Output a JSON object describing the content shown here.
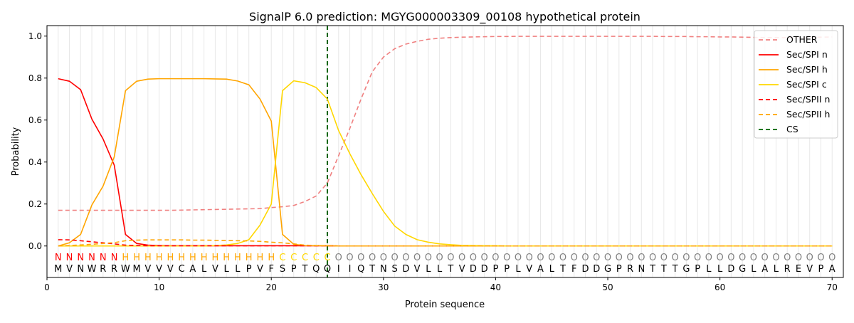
{
  "chart_data": {
    "type": "line",
    "title": "SignalP 6.0 prediction: MGYG000003309_00108 hypothetical protein",
    "xlabel": "Protein sequence",
    "ylabel": "Probability",
    "xlim": [
      0,
      71
    ],
    "ylim": [
      -0.15,
      1.05
    ],
    "x_ticks": [
      0,
      10,
      20,
      30,
      40,
      50,
      60,
      70
    ],
    "y_ticks": [
      0.0,
      0.2,
      0.4,
      0.6,
      0.8,
      1.0
    ],
    "x_tick_labels": [
      "0",
      "10",
      "20",
      "30",
      "40",
      "50",
      "60",
      "70"
    ],
    "y_tick_labels": [
      "0.0",
      "0.2",
      "0.4",
      "0.6",
      "0.8",
      "1.0"
    ],
    "grid": "vertical lines at each residue",
    "legend_position": "top-right",
    "sequence": [
      "M",
      "V",
      "N",
      "W",
      "R",
      "R",
      "W",
      "M",
      "V",
      "V",
      "V",
      "C",
      "A",
      "L",
      "V",
      "L",
      "L",
      "P",
      "V",
      "F",
      "S",
      "P",
      "T",
      "Q",
      "Q",
      "I",
      "I",
      "Q",
      "T",
      "N",
      "S",
      "D",
      "V",
      "L",
      "L",
      "T",
      "V",
      "D",
      "D",
      "P",
      "P",
      "L",
      "V",
      "A",
      "L",
      "T",
      "F",
      "D",
      "D",
      "G",
      "P",
      "R",
      "N",
      "T",
      "T",
      "T",
      "G",
      "P",
      "L",
      "L",
      "D",
      "G",
      "L",
      "A",
      "L",
      "R",
      "E",
      "V",
      "P",
      "A"
    ],
    "region_labels": [
      "N",
      "N",
      "N",
      "N",
      "N",
      "N",
      "H",
      "H",
      "H",
      "H",
      "H",
      "H",
      "H",
      "H",
      "H",
      "H",
      "H",
      "H",
      "H",
      "H",
      "C",
      "C",
      "C",
      "C",
      "C",
      "O",
      "O",
      "O",
      "O",
      "O",
      "O",
      "O",
      "O",
      "O",
      "O",
      "O",
      "O",
      "O",
      "O",
      "O",
      "O",
      "O",
      "O",
      "O",
      "O",
      "O",
      "O",
      "O",
      "O",
      "O",
      "O",
      "O",
      "O",
      "O",
      "O",
      "O",
      "O",
      "O",
      "O",
      "O",
      "O",
      "O",
      "O",
      "O",
      "O",
      "O",
      "O",
      "O",
      "O",
      "O"
    ],
    "region_colors": {
      "N": "#ff0000",
      "H": "#ffa500",
      "C": "#ffd700",
      "O": "#808080"
    },
    "cleavage_site": 25,
    "series": [
      {
        "name": "OTHER",
        "color": "#f08080",
        "dash": "dashed",
        "values": [
          0.17,
          0.17,
          0.17,
          0.17,
          0.17,
          0.17,
          0.17,
          0.17,
          0.17,
          0.17,
          0.17,
          0.171,
          0.172,
          0.173,
          0.174,
          0.175,
          0.176,
          0.177,
          0.178,
          0.183,
          0.187,
          0.193,
          0.212,
          0.238,
          0.3,
          0.43,
          0.56,
          0.7,
          0.83,
          0.9,
          0.94,
          0.962,
          0.975,
          0.985,
          0.99,
          0.993,
          0.995,
          0.996,
          0.997,
          0.998,
          0.998,
          0.999,
          0.999,
          0.999,
          0.999,
          0.999,
          0.999,
          0.999,
          0.999,
          0.999,
          0.999,
          0.999,
          0.999,
          0.999,
          0.998,
          0.998,
          0.998,
          0.997,
          0.997,
          0.996,
          0.996,
          0.995,
          0.994,
          0.993,
          0.993,
          0.993,
          0.993,
          0.993,
          0.995,
          0.996
        ]
      },
      {
        "name": "Sec/SPI n",
        "color": "#ff0000",
        "dash": "solid",
        "values": [
          0.797,
          0.785,
          0.745,
          0.605,
          0.51,
          0.385,
          0.055,
          0.012,
          0.004,
          0.002,
          0.001,
          0.001,
          0.001,
          0.001,
          0.001,
          0.001,
          0.001,
          0.001,
          0.001,
          0.001,
          0.001,
          0.001,
          0.001,
          0.001,
          0.001,
          0,
          0,
          0,
          0,
          0,
          0,
          0,
          0,
          0,
          0,
          0,
          0,
          0,
          0,
          0,
          0,
          0,
          0,
          0,
          0,
          0,
          0,
          0,
          0,
          0,
          0,
          0,
          0,
          0,
          0,
          0,
          0,
          0,
          0,
          0,
          0,
          0,
          0,
          0,
          0,
          0,
          0,
          0,
          0,
          0
        ]
      },
      {
        "name": "Sec/SPI h",
        "color": "#ffa500",
        "dash": "solid",
        "values": [
          0.0,
          0.015,
          0.055,
          0.195,
          0.285,
          0.425,
          0.74,
          0.785,
          0.795,
          0.797,
          0.797,
          0.797,
          0.797,
          0.797,
          0.796,
          0.795,
          0.786,
          0.768,
          0.7,
          0.595,
          0.055,
          0.008,
          0.002,
          0.001,
          0.001,
          0,
          0,
          0,
          0,
          0,
          0,
          0,
          0,
          0,
          0,
          0,
          0,
          0,
          0,
          0,
          0,
          0,
          0,
          0,
          0,
          0,
          0,
          0,
          0,
          0,
          0,
          0,
          0,
          0,
          0,
          0,
          0,
          0,
          0,
          0,
          0,
          0,
          0,
          0,
          0,
          0,
          0,
          0,
          0,
          0
        ]
      },
      {
        "name": "Sec/SPI c",
        "color": "#ffd700",
        "dash": "solid",
        "values": [
          0,
          0,
          0,
          0,
          0,
          0,
          0,
          0,
          0,
          0,
          0,
          0,
          0,
          0,
          0.002,
          0.005,
          0.012,
          0.03,
          0.1,
          0.2,
          0.74,
          0.787,
          0.778,
          0.755,
          0.7,
          0.55,
          0.44,
          0.34,
          0.25,
          0.165,
          0.095,
          0.055,
          0.03,
          0.018,
          0.01,
          0.006,
          0.003,
          0.002,
          0.001,
          0.001,
          0,
          0,
          0,
          0,
          0,
          0,
          0,
          0,
          0,
          0,
          0,
          0,
          0,
          0,
          0,
          0,
          0,
          0,
          0,
          0,
          0,
          0,
          0,
          0,
          0,
          0,
          0,
          0,
          0,
          0
        ]
      },
      {
        "name": "Sec/SPII n",
        "color": "#ff0000",
        "dash": "dashed",
        "values": [
          0.03,
          0.029,
          0.025,
          0.02,
          0.015,
          0.01,
          0.004,
          0.002,
          0.001,
          0.001,
          0.001,
          0.001,
          0.001,
          0.001,
          0.001,
          0.001,
          0.001,
          0.001,
          0.001,
          0.001,
          0.001,
          0.001,
          0.001,
          0.001,
          0.001,
          0,
          0,
          0,
          0,
          0,
          0,
          0,
          0,
          0,
          0,
          0,
          0,
          0,
          0,
          0,
          0,
          0,
          0,
          0,
          0,
          0,
          0,
          0,
          0,
          0,
          0,
          0,
          0,
          0,
          0,
          0,
          0,
          0,
          0,
          0,
          0,
          0,
          0,
          0,
          0,
          0,
          0,
          0,
          0,
          0
        ]
      },
      {
        "name": "Sec/SPII h",
        "color": "#ffa500",
        "dash": "dashed",
        "values": [
          0.0,
          0.002,
          0.005,
          0.008,
          0.012,
          0.016,
          0.025,
          0.028,
          0.029,
          0.029,
          0.029,
          0.029,
          0.028,
          0.028,
          0.027,
          0.026,
          0.025,
          0.024,
          0.022,
          0.018,
          0.015,
          0.01,
          0.004,
          0.002,
          0.001,
          0,
          0,
          0,
          0,
          0,
          0,
          0,
          0,
          0,
          0,
          0,
          0,
          0,
          0,
          0,
          0,
          0,
          0,
          0,
          0,
          0,
          0,
          0,
          0,
          0,
          0,
          0,
          0,
          0,
          0,
          0,
          0,
          0,
          0,
          0,
          0,
          0,
          0,
          0,
          0,
          0,
          0,
          0,
          0,
          0
        ]
      },
      {
        "name": "CS",
        "color": "#006400",
        "dash": "dashed",
        "values": []
      }
    ]
  }
}
